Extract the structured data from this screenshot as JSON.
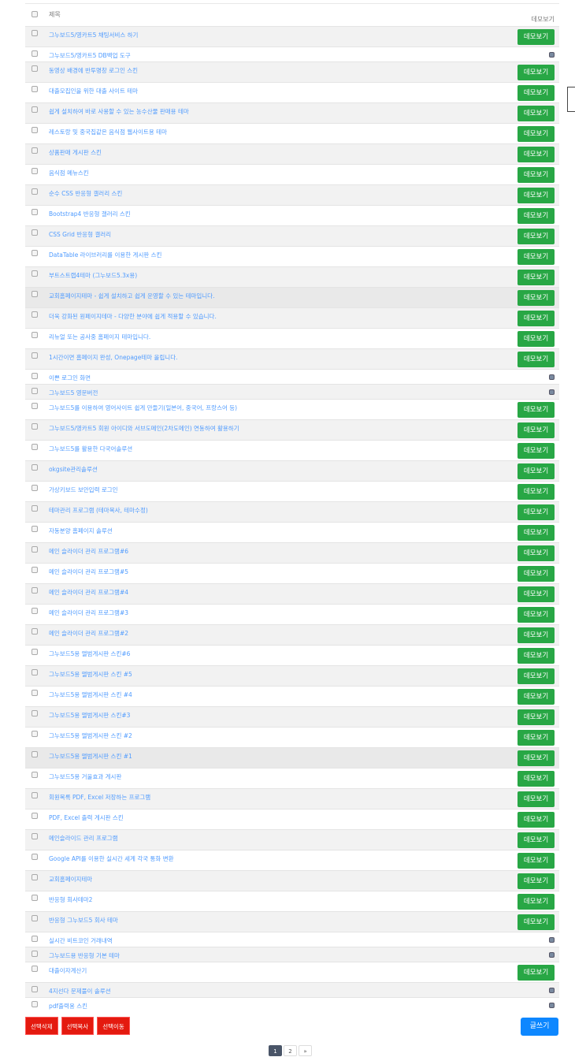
{
  "header": {
    "title_col": "제목",
    "demo_col": "데모보기"
  },
  "demo_label": "데모보기",
  "colors": {
    "demo_button": "#28a745",
    "link": "#4f9bff",
    "action_button": "#e41a0f",
    "write_button": "#0d87ff"
  },
  "rows": [
    {
      "title": "그누보드5/영카트5 채팅서비스 하기",
      "demo": true
    },
    {
      "title": "그누보드5/영카트5 DB백업 도구",
      "demo": false,
      "icon": "database-icon"
    },
    {
      "title": "동영상 배경에 반투명창 로그인 스킨",
      "demo": true
    },
    {
      "title": "대출모집인을 위한 대출 사이트 테마",
      "demo": true
    },
    {
      "title": "쉽게 설치하여 바로 사용할 수 있는 농수산물 판매용 테마",
      "demo": true
    },
    {
      "title": "레스토랑 및 중국집같은 음식점 웹사이트용 테마",
      "demo": true
    },
    {
      "title": "상품판매 게시판 스킨",
      "demo": true
    },
    {
      "title": "음식점 메뉴스킨",
      "demo": true
    },
    {
      "title": "순수 CSS 반응형 갤러리 스킨",
      "demo": true
    },
    {
      "title": "Bootstrap4 반응형 갤러리 스킨",
      "demo": true
    },
    {
      "title": "CSS Grid 반응형 갤러리",
      "demo": true
    },
    {
      "title": "DataTable 라이브러리를 이용한 게시판 스킨",
      "demo": true
    },
    {
      "title": "부트스트랩4테마 (그누보드5.3x용)",
      "demo": true
    },
    {
      "title": "교회홈페이지테마 - 쉽게 설치하고 쉽게 운영할 수 있는 테마입니다.",
      "demo": true,
      "highlight": true
    },
    {
      "title": "더욱 강화된 원페이지테마 - 다양한 분야에 쉽게 적용할 수 있습니다.",
      "demo": true
    },
    {
      "title": "리뉴얼 또는 공사중 홈페이지 테마입니다.",
      "demo": true
    },
    {
      "title": "1시간이면 홈페이지 완성, Onepage테마 올립니다.",
      "demo": true
    },
    {
      "title": "이쁜 로그인 화면",
      "demo": false,
      "icon": "database-icon"
    },
    {
      "title": "그누보드5 영문버전",
      "demo": false,
      "icon": "database-icon"
    },
    {
      "title": "그누보드5를 이용하여 영어사이트 쉽게 만들기(일본어, 중국어, 프랑스어 등)",
      "demo": true
    },
    {
      "title": "그누보드5/영카트5 회원 아이디와 서브도메인(2차도메인) 연동하여 활용하기",
      "demo": true
    },
    {
      "title": "그누보드5를 활용한 다국어솔루션",
      "demo": true
    },
    {
      "title": "okgsite관리솔루션",
      "demo": true
    },
    {
      "title": "가상키보드 보안입력 로그인",
      "demo": true
    },
    {
      "title": "테마관리 프로그램 (테마복사, 테마수정)",
      "demo": true
    },
    {
      "title": "자동분양 홈페이지 솔루션",
      "demo": true
    },
    {
      "title": "메인 슬라이더 관리 프로그램#6",
      "demo": true
    },
    {
      "title": "메인 슬라이더 관리 프로그램#5",
      "demo": true
    },
    {
      "title": "메인 슬라이더 관리 프로그램#4",
      "demo": true
    },
    {
      "title": "메인 슬라이더 관리 프로그램#3",
      "demo": true
    },
    {
      "title": "메인 슬라이더 관리 프로그램#2",
      "demo": true
    },
    {
      "title": "그누보드5용 앨범게시판 스킨#6",
      "demo": true
    },
    {
      "title": "그누보드5용 앨범게시판 스킨 #5",
      "demo": true
    },
    {
      "title": "그누보드5용 앨범게시판 스킨 #4",
      "demo": true
    },
    {
      "title": "그누보드5용 앨범게시판 스킨#3",
      "demo": true
    },
    {
      "title": "그누보드5용 앨범게시판 스킨 #2",
      "demo": true
    },
    {
      "title": "그누보드5용 앨범게시판 스킨 #1",
      "demo": true,
      "highlight": true
    },
    {
      "title": "그누보드5용 거울효과 게시판",
      "demo": true
    },
    {
      "title": "회원목록 PDF, Excel 저장하는 프로그램",
      "demo": true
    },
    {
      "title": "PDF, Excel 출력 게시판 스킨",
      "demo": true
    },
    {
      "title": "메인슬라이드 관리 프로그램",
      "demo": true
    },
    {
      "title": "Google API를 이용한 실시간 세계 각국 통화 변환",
      "demo": true
    },
    {
      "title": "교회홈페이지테마",
      "demo": true
    },
    {
      "title": "반응형 회사테마2",
      "demo": true
    },
    {
      "title": "반응형 그누보드5 회사 테마",
      "demo": true
    },
    {
      "title": "실시간 비트코인 거래내역",
      "demo": false,
      "icon": "database-icon"
    },
    {
      "title": "그누보드용 반응형 기본 테마",
      "demo": false,
      "icon": "database-icon"
    },
    {
      "title": "대출이자계산기",
      "demo": true
    },
    {
      "title": "4지선다 문제풀이 솔루션",
      "demo": false,
      "icon": "database-icon"
    },
    {
      "title": "pdf출력용 스킨",
      "demo": false,
      "icon": "database-icon"
    }
  ],
  "actions": {
    "delete": "선택삭제",
    "copy": "선택복사",
    "move": "선택이동",
    "write": "글쓰기"
  },
  "pagination": {
    "pages": [
      "1",
      "2"
    ],
    "current": "1",
    "next": "»"
  }
}
